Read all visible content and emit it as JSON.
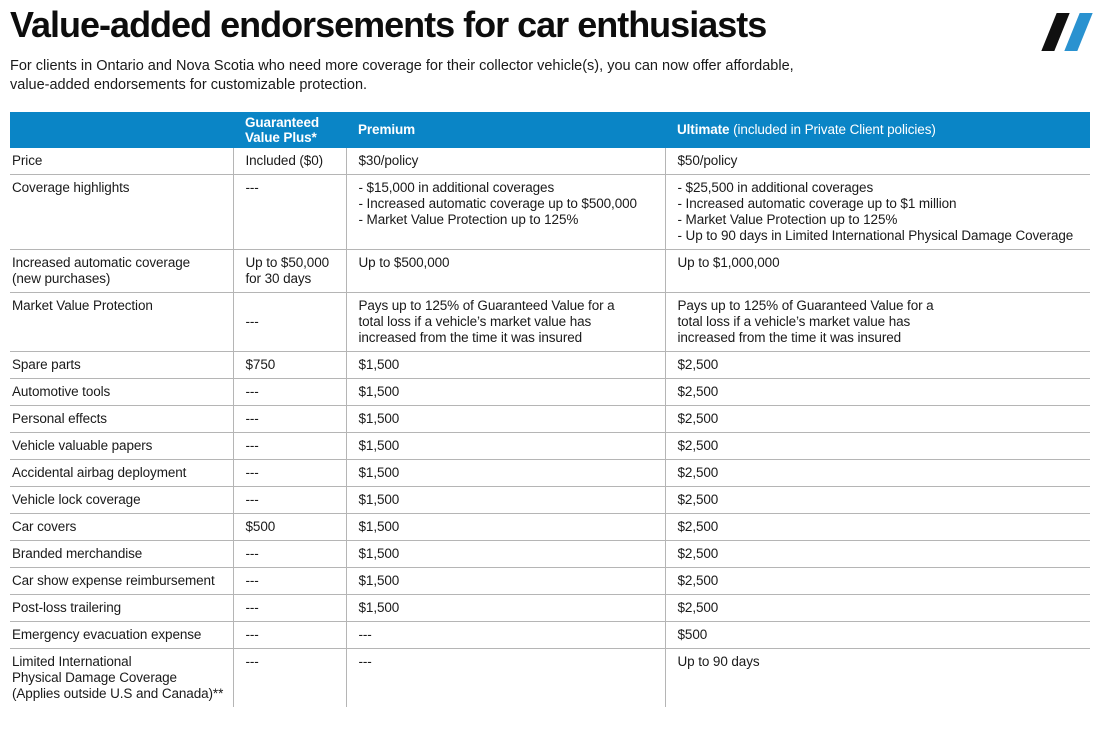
{
  "page": {
    "title": "Value-added endorsements for car enthusiasts",
    "intro": "For clients in Ontario and Nova Scotia who need more coverage for their collector vehicle(s), you can now offer affordable,\nvalue-added endorsements for customizable protection."
  },
  "logo": {
    "description": "double-slash brand mark",
    "slash_dark_color": "#101010",
    "slash_blue_color": "#2a92d0"
  },
  "theme": {
    "header_bg": "#0a85c6",
    "header_text": "#ffffff",
    "body_text": "#1a1a1a",
    "grid_line": "#b5b5b5"
  },
  "table": {
    "columns": [
      {
        "label": ""
      },
      {
        "label": "Guaranteed\nValue Plus*"
      },
      {
        "label": "Premium"
      },
      {
        "label": "Ultimate",
        "suffix": " (included in Private Client policies)"
      }
    ],
    "rows": [
      {
        "label": "Price",
        "cells": [
          {
            "text": "Included ($0)"
          },
          {
            "text": "$30/policy"
          },
          {
            "text": "$50/policy"
          }
        ]
      },
      {
        "label": "Coverage highlights",
        "cells": [
          {
            "text": "---"
          },
          {
            "text": "- $15,000 in additional coverages\n- Increased automatic coverage up to $500,000\n- Market Value Protection up to 125%"
          },
          {
            "text": "- $25,500 in additional coverages\n- Increased automatic coverage up to $1 million\n- Market Value Protection up to 125%\n- Up to 90 days in Limited International Physical Damage Coverage"
          }
        ]
      },
      {
        "label": "Increased automatic coverage\n(new purchases)",
        "cells": [
          {
            "text": "Up to $50,000\nfor 30 days"
          },
          {
            "text": "Up to $500,000"
          },
          {
            "text": "Up to $1,000,000"
          }
        ]
      },
      {
        "label": "Market Value Protection",
        "cells": [
          {
            "text": "---",
            "middle": true
          },
          {
            "text": "Pays up to 125% of Guaranteed Value for a\ntotal loss if a vehicle’s market value has\nincreased from the time it was insured"
          },
          {
            "text": "Pays up to 125% of Guaranteed Value for a\ntotal loss if a vehicle’s market value has\nincreased from the time it was insured"
          }
        ]
      },
      {
        "label": "Spare parts",
        "cells": [
          {
            "text": "$750"
          },
          {
            "text": "$1,500"
          },
          {
            "text": "$2,500"
          }
        ]
      },
      {
        "label": "Automotive tools",
        "cells": [
          {
            "text": "---"
          },
          {
            "text": "$1,500"
          },
          {
            "text": "$2,500"
          }
        ]
      },
      {
        "label": "Personal effects",
        "cells": [
          {
            "text": "---"
          },
          {
            "text": "$1,500"
          },
          {
            "text": "$2,500"
          }
        ]
      },
      {
        "label": "Vehicle valuable papers",
        "cells": [
          {
            "text": "---"
          },
          {
            "text": "$1,500"
          },
          {
            "text": "$2,500"
          }
        ]
      },
      {
        "label": "Accidental airbag deployment",
        "cells": [
          {
            "text": "---"
          },
          {
            "text": "$1,500"
          },
          {
            "text": "$2,500"
          }
        ]
      },
      {
        "label": "Vehicle lock coverage",
        "cells": [
          {
            "text": "---"
          },
          {
            "text": "$1,500"
          },
          {
            "text": "$2,500"
          }
        ]
      },
      {
        "label": "Car covers",
        "cells": [
          {
            "text": "$500"
          },
          {
            "text": "$1,500"
          },
          {
            "text": "$2,500"
          }
        ]
      },
      {
        "label": "Branded merchandise",
        "cells": [
          {
            "text": "---"
          },
          {
            "text": "$1,500"
          },
          {
            "text": "$2,500"
          }
        ]
      },
      {
        "label": "Car show expense reimbursement",
        "cells": [
          {
            "text": "---"
          },
          {
            "text": "$1,500"
          },
          {
            "text": "$2,500"
          }
        ]
      },
      {
        "label": "Post-loss trailering",
        "cells": [
          {
            "text": "---"
          },
          {
            "text": "$1,500"
          },
          {
            "text": "$2,500"
          }
        ]
      },
      {
        "label": "Emergency evacuation expense",
        "cells": [
          {
            "text": "---"
          },
          {
            "text": "---"
          },
          {
            "text": "$500"
          }
        ]
      },
      {
        "label": "Limited International\nPhysical Damage Coverage\n(Applies outside U.S and Canada)**",
        "cells": [
          {
            "text": "---"
          },
          {
            "text": "---"
          },
          {
            "text": "Up to 90 days"
          }
        ]
      }
    ]
  }
}
